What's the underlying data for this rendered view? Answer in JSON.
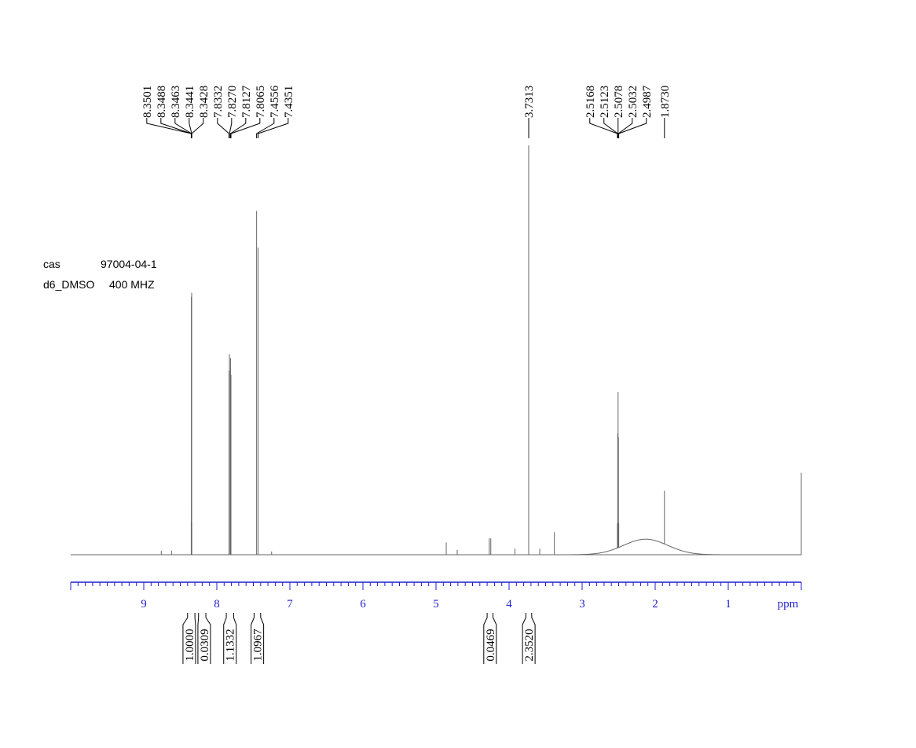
{
  "chart_data": {
    "type": "nmr",
    "xlabel": "ppm",
    "xlim": [
      10,
      0
    ],
    "xticks": [
      9,
      8,
      7,
      6,
      5,
      4,
      3,
      2,
      1
    ],
    "xminor": 0.1,
    "ylim": [
      0,
      100
    ],
    "info": [
      [
        "cas",
        "97004-04-1"
      ],
      [
        "d6_DMSO",
        "400 MHZ"
      ]
    ],
    "peak_labels": [
      8.3501,
      8.3488,
      8.3463,
      8.3441,
      8.3428,
      7.8332,
      {
        "value": 7.827,
        "label": "7.8270"
      },
      7.8127,
      7.8065,
      7.4556,
      7.4351,
      3.7313,
      2.5168,
      2.5123,
      2.5078,
      2.5032,
      2.4987,
      {
        "value": 1.873,
        "label": "1.8730"
      }
    ],
    "peak_heights": [
      8,
      63,
      12,
      64,
      8,
      45,
      49,
      48,
      44,
      84,
      75,
      100,
      6,
      28,
      38,
      27,
      6,
      13
    ],
    "other_peaks": {
      "x": [
        0,
        3.38,
        4.86,
        4.27,
        4.25,
        3.58,
        8.76,
        8.62,
        7.25,
        4.71,
        3.92
      ],
      "heights": [
        20,
        5.5,
        3,
        4,
        4,
        1.5,
        1,
        1,
        0.8,
        1.2,
        1.5
      ]
    },
    "broad_peak": {
      "x": 2.13,
      "height": 3.8,
      "half_width": 0.3
    },
    "integrals": {
      "from": [
        8.4,
        8.25,
        7.87,
        7.49,
        4.3,
        3.77
      ],
      "to": [
        8.3,
        8.15,
        7.77,
        7.4,
        4.22,
        3.69
      ],
      "values": [
        1,
        0.0309,
        1.1332,
        1.0967,
        0.0469,
        2.352
      ],
      "value_labels": [
        "1.0000",
        "0.0309",
        "1.1332",
        "1.0967",
        "0.0469",
        "2.3520"
      ]
    },
    "spectrum_color": "#666666",
    "axis_color": "#1f1fd0"
  }
}
